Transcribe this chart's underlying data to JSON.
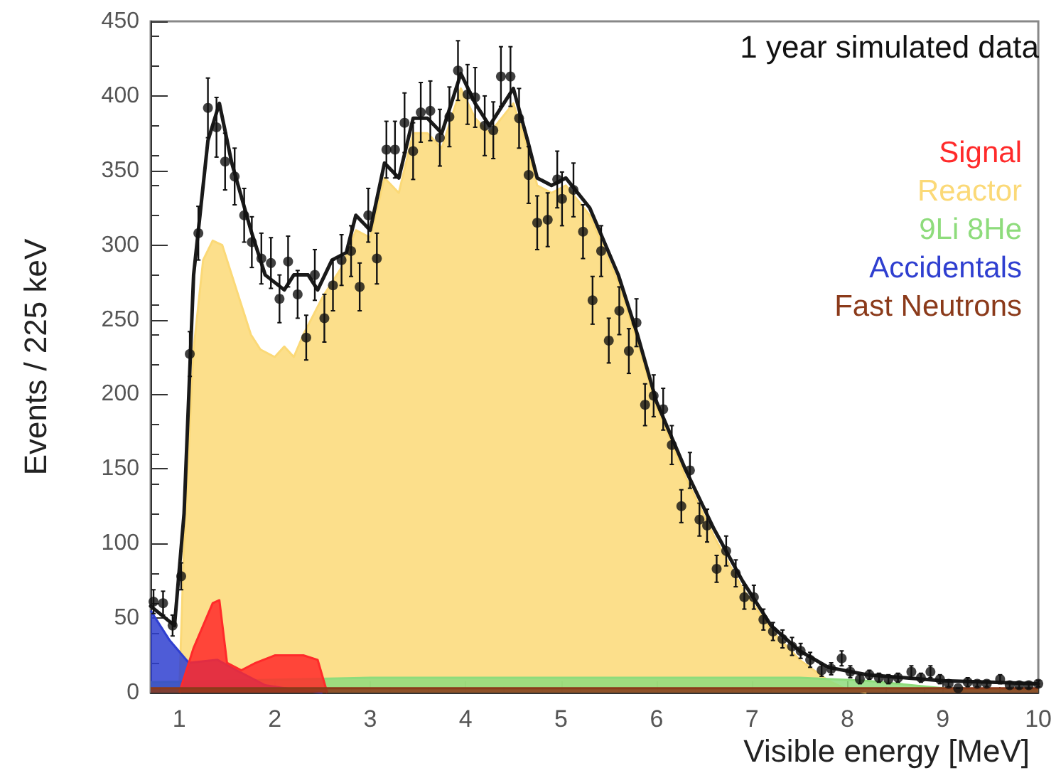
{
  "chart_data": {
    "type": "area",
    "xlabel": "Visible energy [MeV]",
    "ylabel": "Events / 225 keV",
    "annotations": [
      "1 year simulated data"
    ],
    "xlim": [
      0.7,
      10
    ],
    "xticks": [
      1,
      2,
      3,
      4,
      5,
      6,
      7,
      8,
      9,
      10
    ],
    "ylim": [
      0,
      450
    ],
    "yticks": [
      0,
      50,
      100,
      150,
      200,
      250,
      300,
      350,
      400,
      450
    ],
    "grid": false,
    "legend": "top right",
    "line_style": "solid",
    "series": [
      {
        "name": "Reactor",
        "marker": "none",
        "color": "#fbd977",
        "x": [
          1.0,
          1.05,
          1.15,
          1.25,
          1.35,
          1.45,
          1.6,
          1.75,
          1.85,
          2.0,
          2.1,
          2.2,
          2.3,
          2.5,
          2.7,
          2.85,
          3.0,
          3.15,
          3.3,
          3.45,
          3.6,
          3.75,
          3.95,
          4.1,
          4.25,
          4.5,
          4.65,
          4.75,
          4.9,
          5.05,
          5.3,
          5.6,
          5.8,
          6.0,
          6.3,
          6.6,
          6.9,
          7.2,
          7.5,
          7.8,
          8.0,
          8.2
        ],
        "values": [
          0,
          100,
          230,
          290,
          303,
          300,
          270,
          240,
          230,
          225,
          232,
          225,
          240,
          265,
          285,
          310,
          305,
          345,
          335,
          375,
          375,
          365,
          405,
          385,
          375,
          395,
          365,
          340,
          335,
          340,
          320,
          275,
          235,
          192,
          145,
          105,
          70,
          42,
          22,
          8,
          2,
          0
        ]
      },
      {
        "name": "9Li 8He",
        "marker": "none",
        "color": "#8edc7c",
        "x": [
          0.7,
          3.0,
          7.5,
          8.2,
          9.0,
          10.0
        ],
        "values": [
          7,
          10,
          10,
          8,
          3,
          2
        ]
      },
      {
        "name": "Accidentals",
        "marker": "none",
        "color": "#2f3fd0",
        "x": [
          0.7,
          0.9,
          1.1,
          1.4,
          1.6,
          1.9,
          2.2,
          2.5
        ],
        "values": [
          55,
          35,
          20,
          22,
          15,
          5,
          2,
          0
        ]
      },
      {
        "name": "Signal",
        "marker": "none",
        "color": "#ff2a2a",
        "x": [
          1.0,
          1.15,
          1.35,
          1.42,
          1.5,
          1.65,
          1.8,
          2.0,
          2.3,
          2.45,
          2.55
        ],
        "values": [
          0,
          30,
          60,
          62,
          20,
          15,
          20,
          25,
          25,
          22,
          0
        ]
      },
      {
        "name": "Fast Neutrons",
        "marker": "none",
        "color": "#8b3a1a",
        "x": [
          0.7,
          10.0
        ],
        "values": [
          3,
          3
        ]
      },
      {
        "type": "line",
        "marker": "none",
        "color": "#1a1a1a",
        "x": [
          0.7,
          0.95,
          1.05,
          1.15,
          1.3,
          1.42,
          1.55,
          1.75,
          1.9,
          2.0,
          2.1,
          2.2,
          2.35,
          2.45,
          2.6,
          2.75,
          2.85,
          3.0,
          3.15,
          3.3,
          3.45,
          3.6,
          3.75,
          3.95,
          4.1,
          4.25,
          4.5,
          4.65,
          4.75,
          4.9,
          5.05,
          5.3,
          5.6,
          5.8,
          6.0,
          6.3,
          6.6,
          6.9,
          7.2,
          7.5,
          7.8,
          8.2,
          8.6,
          9.0,
          9.5,
          10.0
        ],
        "values": [
          58,
          45,
          120,
          280,
          370,
          395,
          355,
          310,
          280,
          275,
          270,
          280,
          280,
          270,
          290,
          295,
          320,
          310,
          355,
          345,
          385,
          385,
          375,
          415,
          395,
          380,
          405,
          370,
          345,
          340,
          345,
          325,
          280,
          240,
          195,
          150,
          110,
          75,
          45,
          28,
          17,
          12,
          10,
          8,
          7,
          6
        ]
      },
      {
        "type": "scatter",
        "marker": "circle",
        "color": "#111111",
        "x": [
          0.73,
          0.83,
          0.93,
          1.02,
          1.11,
          1.2,
          1.3,
          1.39,
          1.48,
          1.58,
          1.68,
          1.76,
          1.86,
          1.96,
          2.05,
          2.14,
          2.24,
          2.33,
          2.42,
          2.52,
          2.61,
          2.7,
          2.8,
          2.89,
          2.98,
          3.07,
          3.17,
          3.26,
          3.36,
          3.45,
          3.53,
          3.63,
          3.73,
          3.83,
          3.92,
          4.02,
          4.1,
          4.2,
          4.29,
          4.37,
          4.47,
          4.56,
          4.66,
          4.75,
          4.86,
          4.96,
          5.01,
          5.13,
          5.23,
          5.33,
          5.42,
          5.5,
          5.61,
          5.71,
          5.79,
          5.88,
          5.97,
          6.07,
          6.16,
          6.26,
          6.35,
          6.45,
          6.53,
          6.63,
          6.73,
          6.83,
          6.92,
          7.02,
          7.12,
          7.22,
          7.32,
          7.42,
          7.51,
          7.61,
          7.73,
          7.83,
          7.94,
          8.03,
          8.13,
          8.23,
          8.33,
          8.43,
          8.53,
          8.67,
          8.77,
          8.87,
          8.97,
          9.06,
          9.16,
          9.26,
          9.36,
          9.46,
          9.6,
          9.7,
          9.8,
          9.9,
          10.0
        ],
        "values": [
          61,
          60,
          45,
          78,
          227,
          308,
          392,
          379,
          356,
          346,
          320,
          302,
          291,
          288,
          264,
          289,
          267,
          238,
          280,
          251,
          273,
          290,
          296,
          272,
          320,
          291,
          364,
          364,
          382,
          363,
          389,
          390,
          372,
          386,
          417,
          401,
          399,
          380,
          377,
          413,
          413,
          385,
          347,
          315,
          317,
          344,
          331,
          337,
          309,
          263,
          296,
          236,
          256,
          229,
          248,
          193,
          199,
          190,
          166,
          125,
          149,
          116,
          112,
          83,
          95,
          80,
          64,
          64,
          49,
          41,
          36,
          31,
          28,
          22,
          15,
          16,
          23,
          14,
          9,
          12,
          10,
          9,
          10,
          14,
          10,
          14,
          9,
          6,
          3,
          7,
          6,
          6,
          9,
          5,
          5,
          5,
          6
        ],
        "errors": [
          8,
          8,
          7,
          9,
          15,
          18,
          20,
          20,
          19,
          19,
          18,
          17,
          17,
          17,
          16,
          17,
          16,
          15,
          17,
          16,
          17,
          17,
          17,
          16,
          18,
          17,
          19,
          19,
          20,
          19,
          20,
          20,
          19,
          20,
          20,
          20,
          20,
          20,
          19,
          20,
          20,
          20,
          19,
          18,
          18,
          19,
          18,
          18,
          18,
          16,
          17,
          15,
          16,
          15,
          16,
          14,
          14,
          14,
          13,
          11,
          12,
          11,
          11,
          9,
          10,
          9,
          8,
          8,
          7,
          6,
          6,
          6,
          5,
          5,
          4,
          4,
          5,
          4,
          3,
          3,
          3,
          3,
          3,
          4,
          3,
          4,
          3,
          2,
          null,
          3,
          2,
          2,
          3,
          2,
          2,
          2,
          2
        ]
      }
    ]
  }
}
